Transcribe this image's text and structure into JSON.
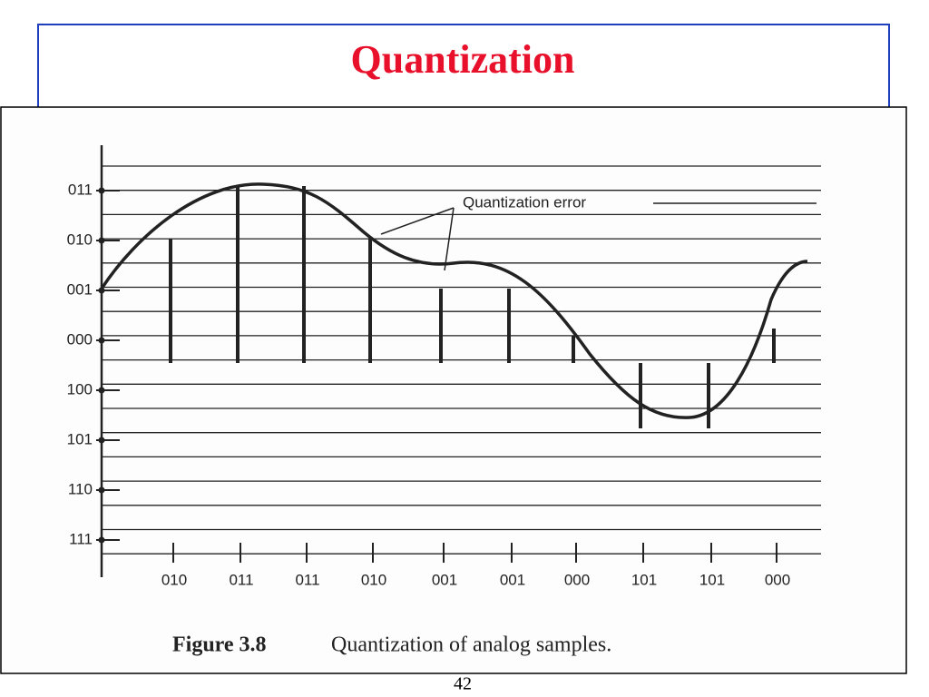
{
  "title": "Quantization",
  "figure": {
    "levels": [
      "011",
      "010",
      "001",
      "000",
      "100",
      "101",
      "110",
      "111"
    ],
    "samples": [
      "010",
      "011",
      "011",
      "010",
      "001",
      "001",
      "000",
      "101",
      "101",
      "000"
    ],
    "annotation": "Quantization error",
    "caption": {
      "number": "Figure 3.8",
      "text": "Quantization of analog samples."
    }
  },
  "page_number": "42"
}
